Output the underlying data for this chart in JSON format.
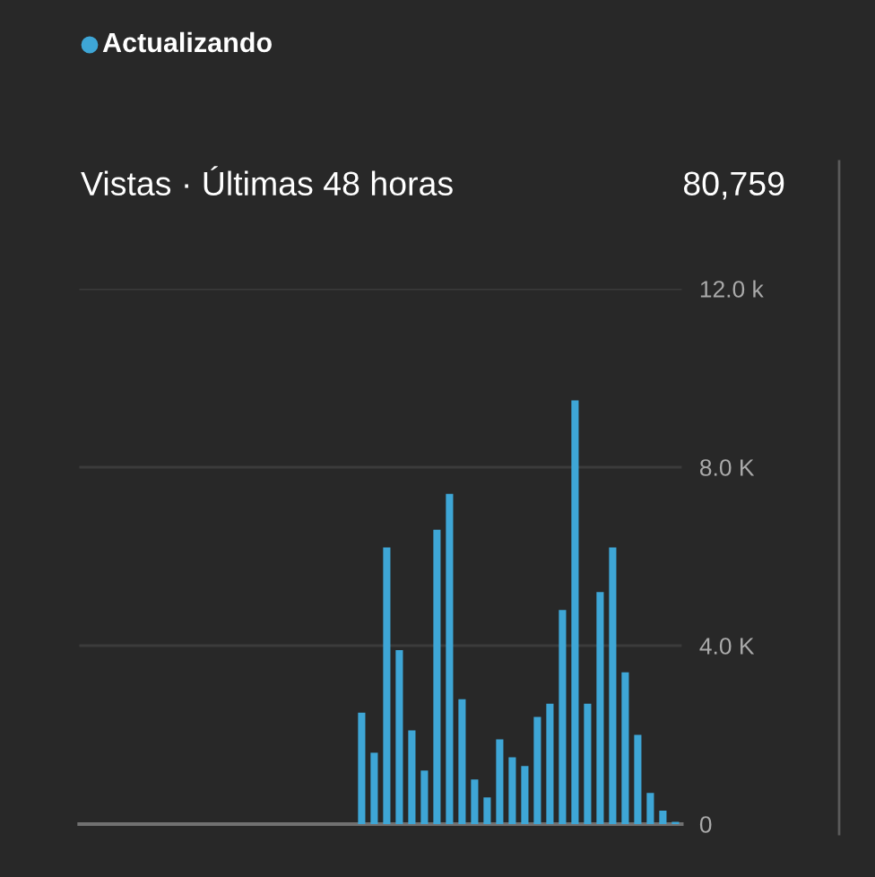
{
  "chart_data": {
    "type": "bar",
    "title": "Vistas · Últimas 48 horas",
    "annotations": [
      "Actualizando",
      "80,759"
    ],
    "categories": [
      null,
      null,
      null,
      null,
      null,
      null,
      null,
      null,
      null,
      null,
      null,
      null,
      null,
      null,
      null,
      null,
      null,
      null,
      null,
      null,
      null,
      null,
      null,
      null,
      null,
      null,
      null,
      null,
      null,
      null,
      null,
      null,
      null,
      null,
      null,
      null,
      null,
      null,
      null,
      null,
      null,
      null,
      null,
      null,
      null,
      null,
      null,
      null
    ],
    "values": [
      0,
      0,
      0,
      0,
      0,
      0,
      0,
      0,
      0,
      0,
      0,
      0,
      0,
      0,
      0,
      0,
      0,
      0,
      0,
      0,
      0,
      0,
      2500,
      1600,
      6200,
      3900,
      2100,
      1200,
      6600,
      7400,
      2800,
      1000,
      600,
      1900,
      1500,
      1300,
      2400,
      2700,
      4800,
      9500,
      2700,
      5200,
      6200,
      3400,
      2000,
      700,
      300,
      50
    ],
    "color": "#3ea6d6",
    "ylim": [
      0,
      12000
    ],
    "yticks": [
      0,
      {
        "value": 4000,
        "label": "4.0 K"
      },
      {
        "value": 8000,
        "label": "8.0 K"
      },
      {
        "value": 12000,
        "label": "12.0 k"
      }
    ],
    "grid": "y",
    "tick_labels": "y"
  }
}
